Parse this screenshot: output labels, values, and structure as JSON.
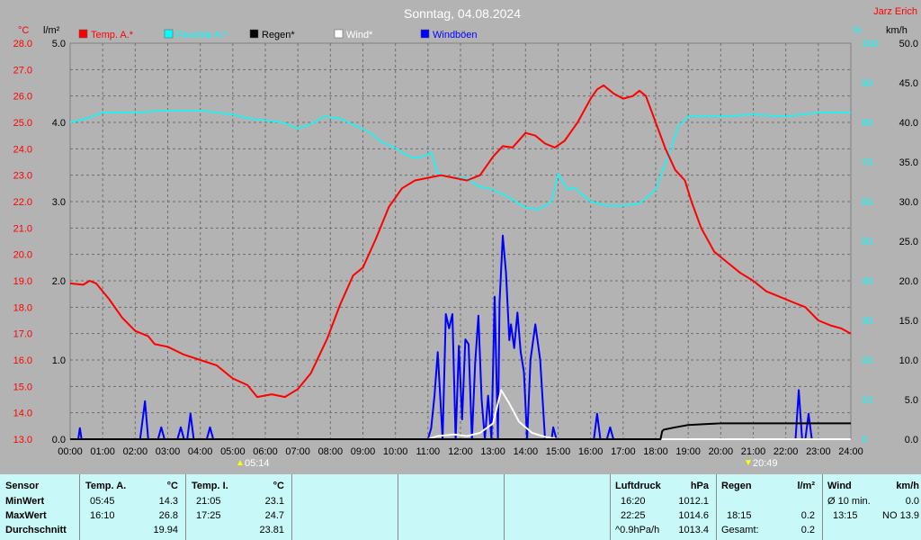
{
  "header": {
    "title": "Sonntag, 04.08.2024",
    "author": "Jarz Erich",
    "left_unit_temp": "°C",
    "left_unit_rain": "l/m²",
    "right_unit_hum": "%",
    "right_unit_wind": "km/h"
  },
  "legend": [
    {
      "label": "Temp. A.*",
      "color": "#ff0000"
    },
    {
      "label": "Feuchte A.*",
      "color": "#00ffff"
    },
    {
      "label": "Regen*",
      "color": "#000000"
    },
    {
      "label": "Wind*",
      "color": "#ffffff"
    },
    {
      "label": "Windböen",
      "color": "#0000ff"
    }
  ],
  "sun": {
    "sunrise": "05:14",
    "sunset": "20:49"
  },
  "chart_data": {
    "type": "line",
    "x_label": "",
    "x_range": [
      0,
      24
    ],
    "x_ticks": [
      "00:00",
      "01:00",
      "02:00",
      "03:00",
      "04:00",
      "05:00",
      "06:00",
      "07:00",
      "08:00",
      "09:00",
      "10:00",
      "11:00",
      "12:00",
      "13:00",
      "14:00",
      "15:00",
      "16:00",
      "17:00",
      "18:00",
      "19:00",
      "20:00",
      "21:00",
      "22:00",
      "23:00",
      "24:00"
    ],
    "axes": {
      "temp": {
        "range": [
          13.0,
          28.0
        ],
        "ticks": [
          "13.0",
          "14.0",
          "15.0",
          "16.0",
          "17.0",
          "18.0",
          "19.0",
          "20.0",
          "21.0",
          "22.0",
          "23.0",
          "24.0",
          "25.0",
          "26.0",
          "27.0",
          "28.0"
        ],
        "color": "#ff0000"
      },
      "rain": {
        "range": [
          0.0,
          5.0
        ],
        "ticks": [
          "0.0",
          "1.0",
          "2.0",
          "3.0",
          "4.0",
          "5.0"
        ],
        "color": "#000000"
      },
      "humidity": {
        "range": [
          0,
          100
        ],
        "ticks": [
          "0",
          "10",
          "20",
          "30",
          "40",
          "50",
          "60",
          "70",
          "80",
          "90",
          "100"
        ],
        "color": "#00ffff"
      },
      "wind": {
        "range": [
          0.0,
          50.0
        ],
        "ticks": [
          "0.0",
          "5.0",
          "10.0",
          "15.0",
          "20.0",
          "25.0",
          "30.0",
          "35.0",
          "40.0",
          "45.0",
          "50.0"
        ],
        "color": "#000000"
      }
    },
    "grid": true,
    "series": [
      {
        "name": "Temp. A.*",
        "axis": "temp",
        "color": "#ff0000",
        "points": [
          [
            0,
            18.9
          ],
          [
            0.4,
            18.85
          ],
          [
            0.6,
            19.0
          ],
          [
            0.8,
            18.9
          ],
          [
            1.2,
            18.3
          ],
          [
            1.6,
            17.6
          ],
          [
            2.0,
            17.1
          ],
          [
            2.4,
            16.9
          ],
          [
            2.6,
            16.6
          ],
          [
            3.0,
            16.5
          ],
          [
            3.5,
            16.2
          ],
          [
            4.0,
            16.0
          ],
          [
            4.5,
            15.8
          ],
          [
            5.0,
            15.3
          ],
          [
            5.45,
            15.05
          ],
          [
            5.75,
            14.6
          ],
          [
            6.2,
            14.7
          ],
          [
            6.6,
            14.6
          ],
          [
            7.0,
            14.9
          ],
          [
            7.4,
            15.5
          ],
          [
            7.9,
            16.8
          ],
          [
            8.3,
            18.1
          ],
          [
            8.7,
            19.2
          ],
          [
            9.0,
            19.5
          ],
          [
            9.4,
            20.6
          ],
          [
            9.8,
            21.8
          ],
          [
            10.2,
            22.5
          ],
          [
            10.6,
            22.8
          ],
          [
            11.0,
            22.9
          ],
          [
            11.4,
            23.0
          ],
          [
            11.8,
            22.9
          ],
          [
            12.2,
            22.8
          ],
          [
            12.6,
            23.0
          ],
          [
            13.0,
            23.7
          ],
          [
            13.3,
            24.1
          ],
          [
            13.6,
            24.05
          ],
          [
            14.0,
            24.6
          ],
          [
            14.3,
            24.5
          ],
          [
            14.6,
            24.2
          ],
          [
            14.9,
            24.05
          ],
          [
            15.2,
            24.3
          ],
          [
            15.6,
            25.0
          ],
          [
            16.0,
            25.9
          ],
          [
            16.2,
            26.25
          ],
          [
            16.4,
            26.4
          ],
          [
            16.7,
            26.1
          ],
          [
            17.0,
            25.9
          ],
          [
            17.3,
            26.0
          ],
          [
            17.5,
            26.2
          ],
          [
            17.7,
            26.0
          ],
          [
            18.0,
            25.0
          ],
          [
            18.3,
            24.0
          ],
          [
            18.6,
            23.2
          ],
          [
            18.9,
            22.8
          ],
          [
            19.1,
            22.0
          ],
          [
            19.4,
            21.0
          ],
          [
            19.8,
            20.1
          ],
          [
            20.2,
            19.7
          ],
          [
            20.6,
            19.3
          ],
          [
            21.0,
            19.0
          ],
          [
            21.4,
            18.6
          ],
          [
            21.8,
            18.4
          ],
          [
            22.2,
            18.2
          ],
          [
            22.6,
            18.0
          ],
          [
            23.0,
            17.5
          ],
          [
            23.4,
            17.3
          ],
          [
            23.7,
            17.2
          ],
          [
            24.0,
            17.0
          ]
        ]
      },
      {
        "name": "Feuchte A.*",
        "axis": "humidity",
        "color": "#00ffff",
        "points": [
          [
            0,
            80
          ],
          [
            0.5,
            81
          ],
          [
            1.0,
            82.5
          ],
          [
            2.0,
            82.5
          ],
          [
            3.0,
            83
          ],
          [
            4.0,
            83
          ],
          [
            5.0,
            82
          ],
          [
            5.5,
            81
          ],
          [
            6.0,
            80.5
          ],
          [
            6.5,
            80
          ],
          [
            7.0,
            78.5
          ],
          [
            7.4,
            79.5
          ],
          [
            7.8,
            81.5
          ],
          [
            8.3,
            81
          ],
          [
            8.8,
            79
          ],
          [
            9.2,
            77.5
          ],
          [
            9.6,
            75
          ],
          [
            10.0,
            73.5
          ],
          [
            10.5,
            71
          ],
          [
            10.9,
            71.5
          ],
          [
            11.1,
            72.5
          ],
          [
            11.3,
            67
          ],
          [
            11.8,
            66
          ],
          [
            12.2,
            66
          ],
          [
            12.5,
            64
          ],
          [
            13.0,
            63
          ],
          [
            13.5,
            61
          ],
          [
            14.0,
            58.5
          ],
          [
            14.4,
            58
          ],
          [
            14.8,
            60
          ],
          [
            15.0,
            67
          ],
          [
            15.3,
            63
          ],
          [
            15.5,
            63.5
          ],
          [
            16.0,
            60
          ],
          [
            16.5,
            59
          ],
          [
            17.0,
            59
          ],
          [
            17.5,
            59.5
          ],
          [
            18.0,
            63
          ],
          [
            18.4,
            72
          ],
          [
            18.7,
            79
          ],
          [
            19.0,
            81.5
          ],
          [
            20.0,
            81.5
          ],
          [
            21.0,
            82
          ],
          [
            22.0,
            81.5
          ],
          [
            23.0,
            82.5
          ],
          [
            24.0,
            82.5
          ]
        ]
      },
      {
        "name": "Regen*",
        "axis": "rain",
        "color": "#000000",
        "points": [
          [
            0,
            0
          ],
          [
            18.15,
            0
          ],
          [
            18.2,
            0.1
          ],
          [
            18.25,
            0.12
          ],
          [
            18.6,
            0.15
          ],
          [
            19.0,
            0.18
          ],
          [
            19.5,
            0.19
          ],
          [
            20.0,
            0.2
          ],
          [
            24.0,
            0.2
          ]
        ]
      },
      {
        "name": "Wind*",
        "axis": "wind",
        "color": "#ffffff",
        "points": [
          [
            0,
            0
          ],
          [
            11.0,
            0
          ],
          [
            11.3,
            0.4
          ],
          [
            11.8,
            0.6
          ],
          [
            12.2,
            0.4
          ],
          [
            12.6,
            0.8
          ],
          [
            13.0,
            2.0
          ],
          [
            13.25,
            6.2
          ],
          [
            13.5,
            4.5
          ],
          [
            13.8,
            2.2
          ],
          [
            14.2,
            0.8
          ],
          [
            14.6,
            0.3
          ],
          [
            15.0,
            0
          ],
          [
            24.0,
            0
          ]
        ]
      },
      {
        "name": "Windböen",
        "axis": "wind",
        "color": "#0000ff",
        "points": [
          [
            0,
            0
          ],
          [
            0.25,
            0
          ],
          [
            0.3,
            1.4
          ],
          [
            0.35,
            0
          ],
          [
            2.15,
            0
          ],
          [
            2.3,
            4.8
          ],
          [
            2.4,
            0
          ],
          [
            2.7,
            0
          ],
          [
            2.8,
            1.5
          ],
          [
            2.9,
            0
          ],
          [
            3.3,
            0
          ],
          [
            3.4,
            1.5
          ],
          [
            3.5,
            0
          ],
          [
            3.6,
            0
          ],
          [
            3.7,
            3.2
          ],
          [
            3.8,
            0
          ],
          [
            4.2,
            0
          ],
          [
            4.3,
            1.5
          ],
          [
            4.4,
            0
          ],
          [
            11.0,
            0
          ],
          [
            11.1,
            1.4
          ],
          [
            11.2,
            5.5
          ],
          [
            11.3,
            11.0
          ],
          [
            11.45,
            0
          ],
          [
            11.55,
            15.8
          ],
          [
            11.65,
            14.0
          ],
          [
            11.75,
            15.8
          ],
          [
            11.85,
            0
          ],
          [
            11.95,
            11.8
          ],
          [
            12.05,
            2.5
          ],
          [
            12.15,
            12.6
          ],
          [
            12.25,
            12.0
          ],
          [
            12.35,
            0
          ],
          [
            12.45,
            9.6
          ],
          [
            12.55,
            15.6
          ],
          [
            12.65,
            5.0
          ],
          [
            12.75,
            0
          ],
          [
            12.85,
            5.5
          ],
          [
            12.95,
            0
          ],
          [
            13.05,
            18.0
          ],
          [
            13.15,
            0
          ],
          [
            13.2,
            17.2
          ],
          [
            13.3,
            25.7
          ],
          [
            13.4,
            21.0
          ],
          [
            13.5,
            12.5
          ],
          [
            13.55,
            14.5
          ],
          [
            13.65,
            11.5
          ],
          [
            13.75,
            16.0
          ],
          [
            13.85,
            11.0
          ],
          [
            13.95,
            8.5
          ],
          [
            14.05,
            0
          ],
          [
            14.15,
            10.0
          ],
          [
            14.3,
            14.5
          ],
          [
            14.45,
            10.0
          ],
          [
            14.6,
            0
          ],
          [
            14.8,
            0
          ],
          [
            14.85,
            1.5
          ],
          [
            14.95,
            0
          ],
          [
            16.1,
            0
          ],
          [
            16.2,
            3.2
          ],
          [
            16.3,
            0
          ],
          [
            16.5,
            0
          ],
          [
            16.6,
            1.5
          ],
          [
            16.7,
            0
          ],
          [
            22.3,
            0
          ],
          [
            22.4,
            6.2
          ],
          [
            22.5,
            0
          ],
          [
            22.6,
            0
          ],
          [
            22.7,
            3.2
          ],
          [
            22.8,
            0
          ],
          [
            24.0,
            0
          ]
        ]
      }
    ]
  },
  "table": {
    "sensor": {
      "header": "Sensor",
      "rows": [
        "MinWert",
        "MaxWert",
        "Durchschnitt"
      ]
    },
    "temp_a": {
      "header": "Temp. A.",
      "unit": "°C",
      "times": [
        "05:45",
        "16:10",
        ""
      ],
      "values": [
        "14.3",
        "26.8",
        "19.94"
      ]
    },
    "temp_i": {
      "header": "Temp. I.",
      "unit": "°C",
      "times": [
        "21:05",
        "17:25",
        ""
      ],
      "values": [
        "23.1",
        "24.7",
        "23.81"
      ]
    },
    "pressure": {
      "header": "Luftdruck",
      "unit": "hPa",
      "times": [
        "16:20",
        "22:25",
        "^0.9hPa/h"
      ],
      "values": [
        "1012.1",
        "1014.6",
        "1013.4"
      ]
    },
    "rain": {
      "header": "Regen",
      "unit": "l/m²",
      "times": [
        "",
        "18:15",
        "Gesamt:"
      ],
      "values": [
        "",
        "0.2",
        "0.2"
      ]
    },
    "wind": {
      "header": "Wind",
      "unit": "km/h",
      "times": [
        "Ø 10 min.",
        "13:15",
        ""
      ],
      "values": [
        "0.0",
        "NO 13.9",
        ""
      ]
    }
  }
}
